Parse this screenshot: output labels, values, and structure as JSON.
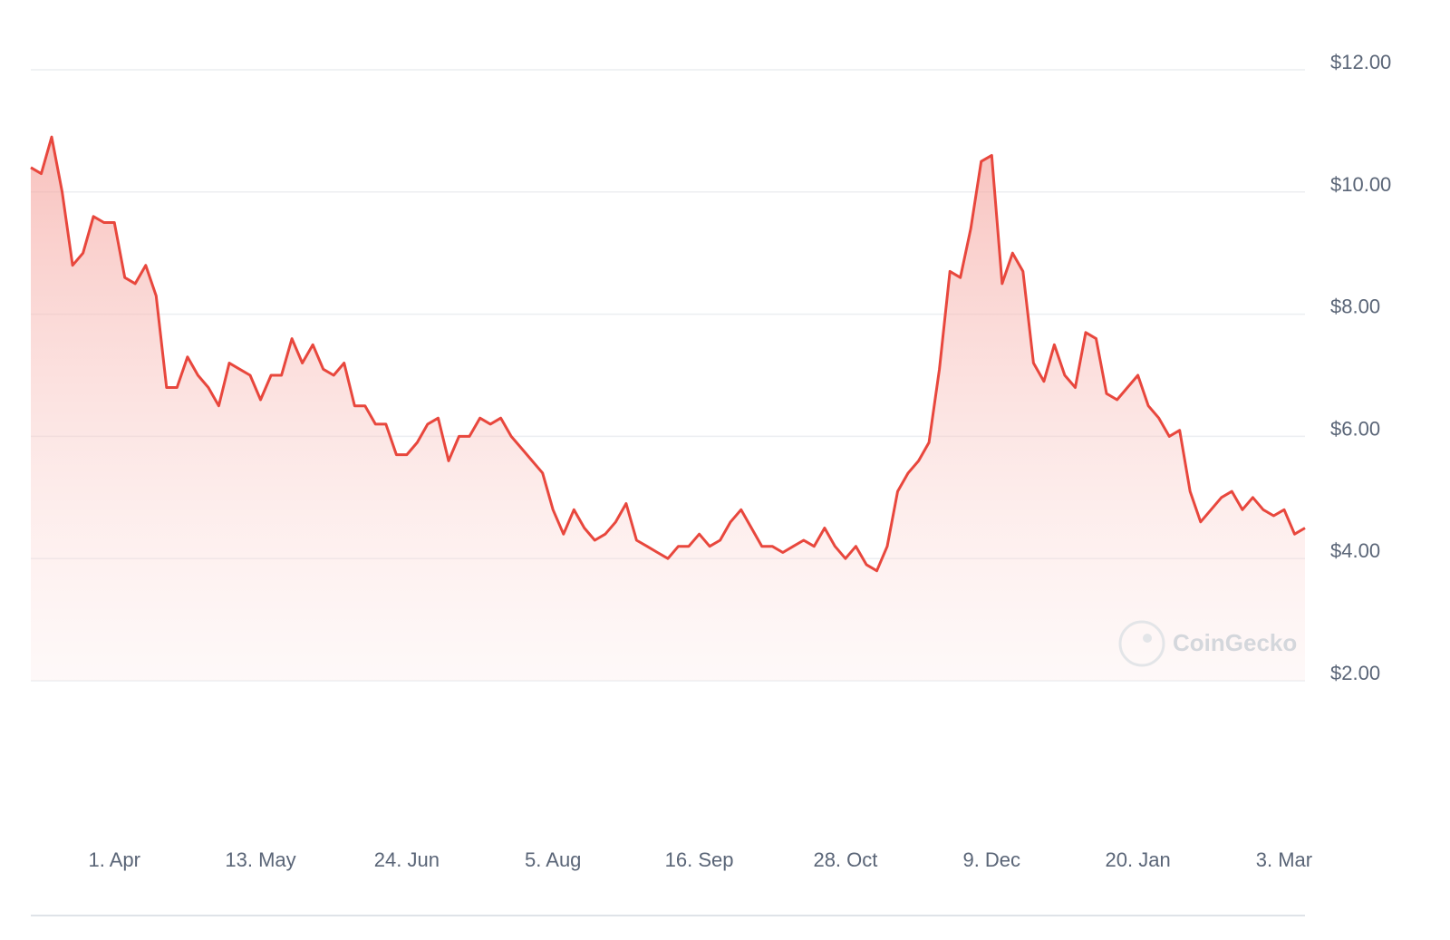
{
  "chart_data": {
    "type": "area-line",
    "categories": [
      null,
      null,
      null,
      null,
      null,
      null,
      null,
      null,
      "1. Apr",
      null,
      null,
      null,
      null,
      null,
      null,
      null,
      null,
      null,
      null,
      null,
      null,
      null,
      "13. May",
      null,
      null,
      null,
      null,
      null,
      null,
      null,
      null,
      null,
      null,
      null,
      null,
      null,
      "24. Jun",
      null,
      null,
      null,
      null,
      null,
      null,
      null,
      null,
      null,
      null,
      null,
      null,
      null,
      "5. Aug",
      null,
      null,
      null,
      null,
      null,
      null,
      null,
      null,
      null,
      null,
      null,
      null,
      null,
      "16. Sep",
      null,
      null,
      null,
      null,
      null,
      null,
      null,
      null,
      null,
      null,
      null,
      null,
      null,
      "28. Oct",
      null,
      null,
      null,
      null,
      null,
      null,
      null,
      null,
      null,
      null,
      null,
      null,
      null,
      "9. Dec",
      null,
      null,
      null,
      null,
      null,
      null,
      null,
      null,
      null,
      null,
      null,
      null,
      null,
      "20. Jan",
      null,
      null,
      null,
      null,
      null,
      null,
      null,
      null,
      null,
      null,
      null,
      null,
      null,
      "3. Mar",
      null,
      null
    ],
    "series": [
      {
        "color": "#e8473d",
        "values": [
          10.4,
          10.3,
          10.9,
          10.0,
          8.8,
          9.0,
          9.6,
          9.5,
          9.5,
          8.6,
          8.5,
          8.8,
          8.3,
          6.8,
          6.8,
          7.3,
          7.0,
          6.8,
          6.5,
          7.2,
          7.1,
          7.0,
          6.6,
          7.0,
          7.0,
          7.6,
          7.2,
          7.5,
          7.1,
          7.0,
          7.2,
          6.5,
          6.5,
          6.2,
          6.2,
          5.7,
          5.7,
          5.9,
          6.2,
          6.3,
          5.6,
          6.0,
          6.0,
          6.3,
          6.2,
          6.3,
          6.0,
          5.8,
          5.6,
          5.4,
          4.8,
          4.4,
          4.8,
          4.5,
          4.3,
          4.4,
          4.6,
          4.9,
          4.3,
          4.2,
          4.1,
          4.0,
          4.2,
          4.2,
          4.4,
          4.2,
          4.3,
          4.6,
          4.8,
          4.5,
          4.2,
          4.2,
          4.1,
          4.2,
          4.3,
          4.2,
          4.5,
          4.2,
          4.0,
          4.2,
          3.9,
          3.8,
          4.2,
          5.1,
          5.4,
          5.6,
          5.9,
          7.1,
          8.7,
          8.6,
          9.4,
          10.5,
          10.6,
          8.5,
          9.0,
          8.7,
          7.2,
          6.9,
          7.5,
          7.0,
          6.8,
          7.7,
          7.6,
          6.7,
          6.6,
          6.8,
          7.0,
          6.5,
          6.3,
          6.0,
          6.1,
          5.1,
          4.6,
          4.8,
          5.0,
          5.1,
          4.8,
          5.0,
          4.8,
          4.7,
          4.8,
          4.4,
          4.5
        ]
      }
    ],
    "ylim": [
      2,
      12
    ],
    "yticks": [
      {
        "value": 2,
        "label": "$2.00"
      },
      {
        "value": 4,
        "label": "$4.00"
      },
      {
        "value": 6,
        "label": "$6.00"
      },
      {
        "value": 8,
        "label": "$8.00"
      },
      {
        "value": 10,
        "label": "$10.00"
      },
      {
        "value": 12,
        "label": "$12.00"
      }
    ],
    "grid": true,
    "watermark": "CoinGecko"
  }
}
